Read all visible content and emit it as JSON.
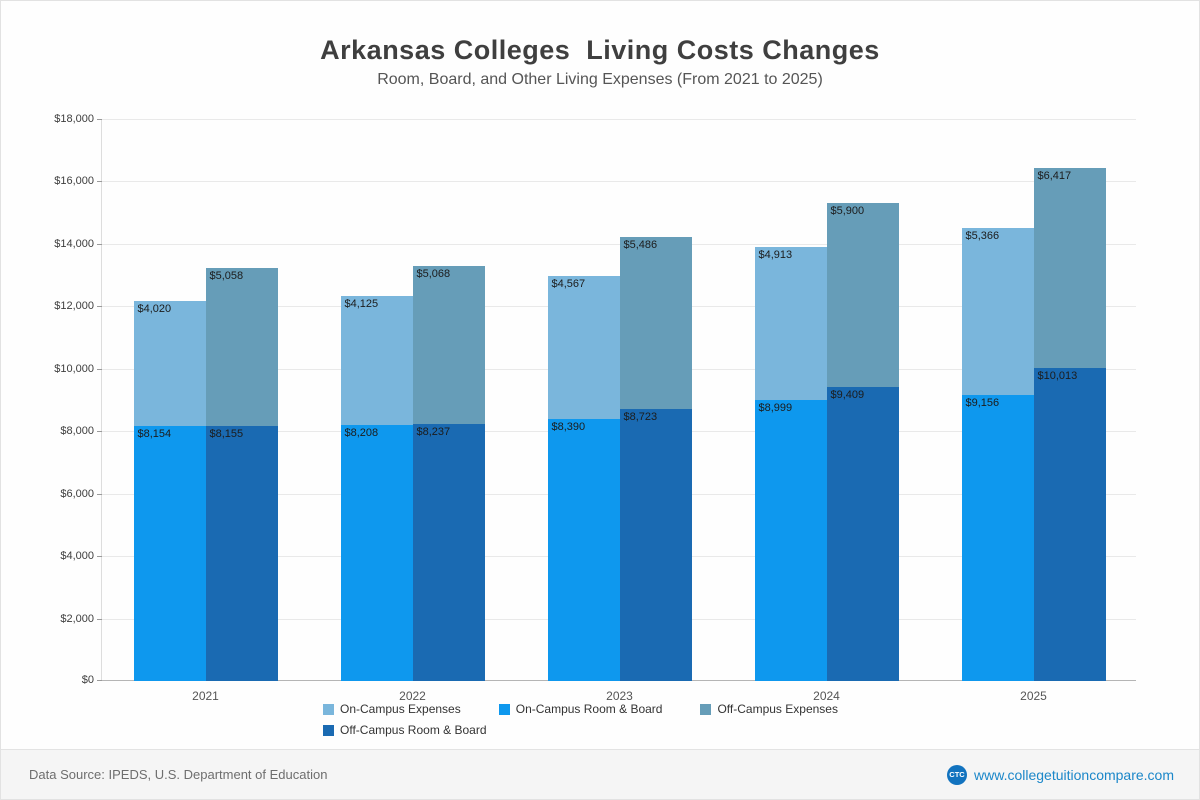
{
  "title": "Arkansas Colleges  Living Costs Changes",
  "subtitle": "Room, Board, and Other Living Expenses (From 2021 to 2025)",
  "footer": {
    "source": "Data Source: IPEDS, U.S. Department of Education",
    "site": "www.collegetuitioncompare.com",
    "logo": "CTC"
  },
  "chart_data": {
    "type": "bar",
    "stacked": true,
    "title": "Arkansas Colleges  Living Costs Changes",
    "subtitle": "Room, Board, and Other Living Expenses (From 2021 to 2025)",
    "categories": [
      "2021",
      "2022",
      "2023",
      "2024",
      "2025"
    ],
    "series": [
      {
        "name": "On-Campus Room & Board",
        "stack": "on",
        "color": "#0e98ee",
        "values": [
          8154,
          8208,
          8390,
          8999,
          9156
        ]
      },
      {
        "name": "On-Campus Expenses",
        "stack": "on",
        "color": "#7ab6dc",
        "values": [
          4020,
          4125,
          4567,
          4913,
          5366
        ]
      },
      {
        "name": "Off-Campus Room & Board",
        "stack": "off",
        "color": "#1a6ab2",
        "values": [
          8155,
          8237,
          8723,
          9409,
          10013
        ]
      },
      {
        "name": "Off-Campus Expenses",
        "stack": "off",
        "color": "#669db8",
        "values": [
          5058,
          5068,
          5486,
          5900,
          6417
        ]
      }
    ],
    "ylim": [
      0,
      18000
    ],
    "yticks": [
      0,
      2000,
      4000,
      6000,
      8000,
      10000,
      12000,
      14000,
      16000,
      18000
    ],
    "ytick_labels": [
      "$0",
      "$2,000",
      "$4,000",
      "$6,000",
      "$8,000",
      "$10,000",
      "$12,000",
      "$14,000",
      "$16,000",
      "$18,000"
    ],
    "grid": true,
    "legend_position": "bottom",
    "legend_order": [
      "On-Campus Expenses",
      "On-Campus Room & Board",
      "Off-Campus Expenses",
      "Off-Campus Room & Board"
    ]
  }
}
